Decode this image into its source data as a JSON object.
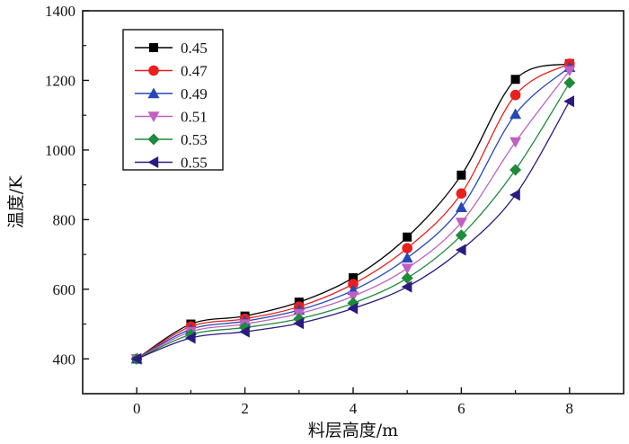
{
  "chart_data": {
    "type": "line",
    "title": "",
    "xlabel": "料层高度/m",
    "ylabel": "温度/K",
    "xlim": [
      -1,
      9
    ],
    "ylim": [
      300,
      1400
    ],
    "xticks": [
      0,
      2,
      4,
      6,
      8
    ],
    "yticks": [
      400,
      600,
      800,
      1000,
      1200,
      1400
    ],
    "x": [
      0,
      1,
      2,
      3,
      4,
      5,
      6,
      7,
      8
    ],
    "legend_position": "top-left",
    "series": [
      {
        "name": "0.45",
        "color": "#000000",
        "marker": "square",
        "values": [
          400,
          500,
          523,
          563,
          633,
          750,
          928,
          1203,
          1248
        ]
      },
      {
        "name": "0.47",
        "color": "#e8201c",
        "marker": "circle",
        "values": [
          400,
          493,
          515,
          550,
          615,
          718,
          875,
          1158,
          1248
        ]
      },
      {
        "name": "0.49",
        "color": "#2547b8",
        "marker": "triangle-up",
        "values": [
          400,
          485,
          508,
          540,
          597,
          690,
          835,
          1103,
          1238
        ]
      },
      {
        "name": "0.51",
        "color": "#c060c0",
        "marker": "triangle-down",
        "values": [
          400,
          478,
          500,
          530,
          580,
          660,
          792,
          1023,
          1228
        ]
      },
      {
        "name": "0.53",
        "color": "#1f8a3a",
        "marker": "diamond",
        "values": [
          400,
          470,
          490,
          515,
          560,
          632,
          755,
          943,
          1193
        ]
      },
      {
        "name": "0.55",
        "color": "#2c1a80",
        "marker": "triangle-left",
        "values": [
          400,
          460,
          478,
          502,
          545,
          607,
          713,
          871,
          1140
        ]
      }
    ]
  }
}
